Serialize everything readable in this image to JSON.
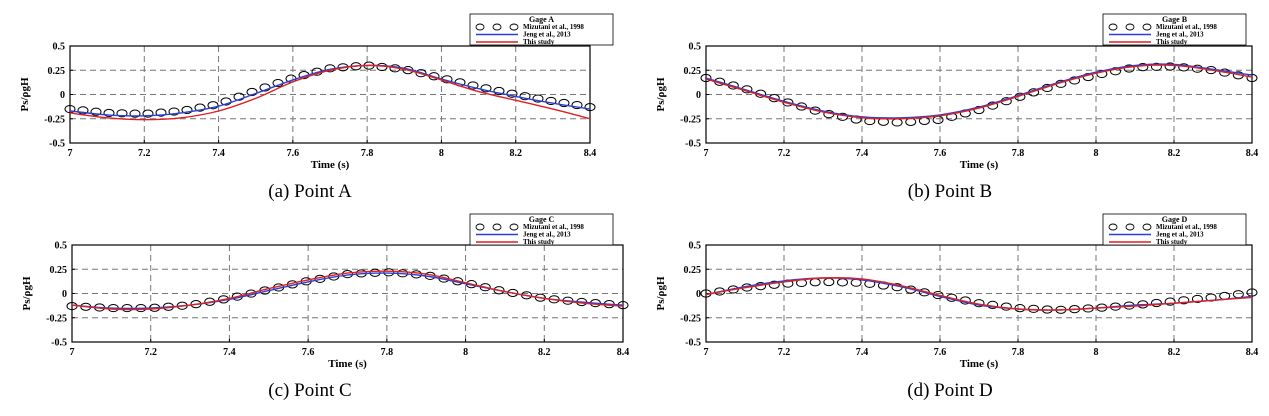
{
  "chart_data": [
    {
      "type": "line",
      "caption": "(a) Point A",
      "legend_title": "Gage A",
      "xlabel": "Time (s)",
      "ylabel": "Ps/ρgH",
      "xlim": [
        7,
        8.4
      ],
      "ylim": [
        -0.5,
        0.5
      ],
      "xticks": [
        "7",
        "7.2",
        "7.4",
        "7.6",
        "7.8",
        "8",
        "8.2",
        "8.4"
      ],
      "yticks": [
        "0.5",
        "0.25",
        "0",
        "-0.25",
        "-0.5"
      ],
      "legend_position": "top-right",
      "grid": true,
      "series": [
        {
          "name": "Mizutani et al., 1998",
          "style": "markers",
          "color": "#000000",
          "x": [
            7.0,
            7.1,
            7.2,
            7.3,
            7.4,
            7.5,
            7.6,
            7.7,
            7.8,
            7.9,
            8.0,
            8.1,
            8.2,
            8.3,
            8.4
          ],
          "y": [
            -0.15,
            -0.19,
            -0.2,
            -0.17,
            -0.1,
            0.04,
            0.17,
            0.27,
            0.3,
            0.26,
            0.17,
            0.08,
            0.0,
            -0.07,
            -0.13
          ]
        },
        {
          "name": "Jeng et al., 2013",
          "style": "line",
          "color": "#2b3fd6",
          "x": [
            7.0,
            7.1,
            7.2,
            7.3,
            7.4,
            7.5,
            7.6,
            7.7,
            7.8,
            7.9,
            8.0,
            8.1,
            8.2,
            8.3,
            8.4
          ],
          "y": [
            -0.17,
            -0.21,
            -0.22,
            -0.19,
            -0.12,
            0.01,
            0.15,
            0.26,
            0.3,
            0.27,
            0.16,
            0.06,
            -0.02,
            -0.09,
            -0.15
          ]
        },
        {
          "name": "This study",
          "style": "line",
          "color": "#e02020",
          "x": [
            7.0,
            7.1,
            7.2,
            7.3,
            7.4,
            7.5,
            7.6,
            7.7,
            7.8,
            7.9,
            8.0,
            8.1,
            8.2,
            8.3,
            8.4
          ],
          "y": [
            -0.19,
            -0.24,
            -0.26,
            -0.24,
            -0.17,
            -0.04,
            0.13,
            0.25,
            0.3,
            0.26,
            0.15,
            0.03,
            -0.06,
            -0.15,
            -0.25
          ]
        }
      ]
    },
    {
      "type": "line",
      "caption": "(b) Point B",
      "legend_title": "Gage B",
      "xlabel": "Time (s)",
      "ylabel": "Ps/ρgH",
      "xlim": [
        7,
        8.4
      ],
      "ylim": [
        -0.5,
        0.5
      ],
      "xticks": [
        "7",
        "7.2",
        "7.4",
        "7.6",
        "7.8",
        "8",
        "8.2",
        "8.4"
      ],
      "yticks": [
        "0.5",
        "0.25",
        "0",
        "-0.25",
        "-0.5"
      ],
      "legend_position": "top-right",
      "grid": true,
      "series": [
        {
          "name": "Mizutani et al., 1998",
          "style": "markers",
          "color": "#000000",
          "x": [
            7.0,
            7.1,
            7.2,
            7.3,
            7.4,
            7.5,
            7.6,
            7.7,
            7.8,
            7.9,
            8.0,
            8.1,
            8.2,
            8.3,
            8.4
          ],
          "y": [
            0.17,
            0.06,
            -0.07,
            -0.19,
            -0.27,
            -0.29,
            -0.26,
            -0.16,
            -0.03,
            0.1,
            0.2,
            0.28,
            0.29,
            0.25,
            0.17
          ]
        },
        {
          "name": "Jeng et al., 2013",
          "style": "line",
          "color": "#2b3fd6",
          "x": [
            7.0,
            7.1,
            7.2,
            7.3,
            7.4,
            7.5,
            7.6,
            7.7,
            7.8,
            7.9,
            8.0,
            8.1,
            8.2,
            8.3,
            8.4
          ],
          "y": [
            0.17,
            0.05,
            -0.07,
            -0.17,
            -0.23,
            -0.24,
            -0.21,
            -0.13,
            -0.01,
            0.12,
            0.23,
            0.3,
            0.31,
            0.26,
            0.2
          ]
        },
        {
          "name": "This study",
          "style": "line",
          "color": "#e02020",
          "x": [
            7.0,
            7.1,
            7.2,
            7.3,
            7.4,
            7.5,
            7.6,
            7.7,
            7.8,
            7.9,
            8.0,
            8.1,
            8.2,
            8.3,
            8.4
          ],
          "y": [
            0.16,
            0.04,
            -0.08,
            -0.18,
            -0.24,
            -0.25,
            -0.22,
            -0.14,
            -0.02,
            0.11,
            0.22,
            0.29,
            0.3,
            0.25,
            0.18
          ]
        }
      ]
    },
    {
      "type": "line",
      "caption": "(c) Point C",
      "legend_title": "Gage C",
      "xlabel": "Time (s)",
      "ylabel": "Ps/ρgH",
      "xlim": [
        7,
        8.4
      ],
      "ylim": [
        -0.5,
        0.5
      ],
      "xticks": [
        "7",
        "7.2",
        "7.4",
        "7.6",
        "7.8",
        "8",
        "8.2",
        "8.4"
      ],
      "yticks": [
        "0.5",
        "0.25",
        "0",
        "-0.25",
        "-0.5"
      ],
      "legend_position": "top-right",
      "grid": true,
      "series": [
        {
          "name": "Mizutani et al., 1998",
          "style": "markers",
          "color": "#000000",
          "x": [
            7.0,
            7.1,
            7.2,
            7.3,
            7.4,
            7.5,
            7.6,
            7.7,
            7.8,
            7.9,
            8.0,
            8.1,
            8.2,
            8.3,
            8.4
          ],
          "y": [
            -0.13,
            -0.15,
            -0.15,
            -0.12,
            -0.05,
            0.04,
            0.13,
            0.2,
            0.22,
            0.19,
            0.11,
            0.02,
            -0.05,
            -0.09,
            -0.12
          ]
        },
        {
          "name": "Jeng et al., 2013",
          "style": "line",
          "color": "#2b3fd6",
          "x": [
            7.0,
            7.1,
            7.2,
            7.3,
            7.4,
            7.5,
            7.6,
            7.7,
            7.8,
            7.9,
            8.0,
            8.1,
            8.2,
            8.3,
            8.4
          ],
          "y": [
            -0.12,
            -0.15,
            -0.15,
            -0.12,
            -0.06,
            0.03,
            0.12,
            0.19,
            0.21,
            0.18,
            0.1,
            0.02,
            -0.05,
            -0.09,
            -0.12
          ]
        },
        {
          "name": "This study",
          "style": "line",
          "color": "#e02020",
          "x": [
            7.0,
            7.1,
            7.2,
            7.3,
            7.4,
            7.5,
            7.6,
            7.7,
            7.8,
            7.9,
            8.0,
            8.1,
            8.2,
            8.3,
            8.4
          ],
          "y": [
            -0.12,
            -0.16,
            -0.16,
            -0.12,
            -0.05,
            0.05,
            0.14,
            0.21,
            0.23,
            0.2,
            0.11,
            0.02,
            -0.05,
            -0.1,
            -0.13
          ]
        }
      ]
    },
    {
      "type": "line",
      "caption": "(d) Point D",
      "legend_title": "Gage D",
      "xlabel": "Time (s)",
      "ylabel": "Ps/ρgH",
      "xlim": [
        7,
        8.4
      ],
      "ylim": [
        -0.5,
        0.5
      ],
      "xticks": [
        "7",
        "7.2",
        "7.4",
        "7.6",
        "7.8",
        "8",
        "8.2",
        "8.4"
      ],
      "yticks": [
        "0.5",
        "0.25",
        "0",
        "-0.25",
        "-0.5"
      ],
      "legend_position": "top-right",
      "grid": true,
      "series": [
        {
          "name": "Mizutani et al., 1998",
          "style": "markers",
          "color": "#000000",
          "x": [
            7.0,
            7.1,
            7.2,
            7.3,
            7.4,
            7.5,
            7.6,
            7.7,
            7.8,
            7.9,
            8.0,
            8.1,
            8.2,
            8.3,
            8.4
          ],
          "y": [
            0.0,
            0.06,
            0.1,
            0.12,
            0.11,
            0.06,
            -0.02,
            -0.1,
            -0.15,
            -0.17,
            -0.15,
            -0.12,
            -0.08,
            -0.04,
            0.01
          ]
        },
        {
          "name": "Jeng et al., 2013",
          "style": "line",
          "color": "#2b3fd6",
          "x": [
            7.0,
            7.1,
            7.2,
            7.3,
            7.4,
            7.5,
            7.6,
            7.7,
            7.8,
            7.9,
            8.0,
            8.1,
            8.2,
            8.3,
            8.4
          ],
          "y": [
            -0.01,
            0.07,
            0.13,
            0.16,
            0.14,
            0.07,
            -0.03,
            -0.12,
            -0.16,
            -0.17,
            -0.15,
            -0.12,
            -0.1,
            -0.07,
            -0.03
          ]
        },
        {
          "name": "This study",
          "style": "line",
          "color": "#e02020",
          "x": [
            7.0,
            7.1,
            7.2,
            7.3,
            7.4,
            7.5,
            7.6,
            7.7,
            7.8,
            7.9,
            8.0,
            8.1,
            8.2,
            8.3,
            8.4
          ],
          "y": [
            -0.01,
            0.06,
            0.12,
            0.16,
            0.15,
            0.08,
            -0.02,
            -0.11,
            -0.16,
            -0.17,
            -0.15,
            -0.13,
            -0.1,
            -0.07,
            -0.04
          ]
        }
      ]
    }
  ]
}
